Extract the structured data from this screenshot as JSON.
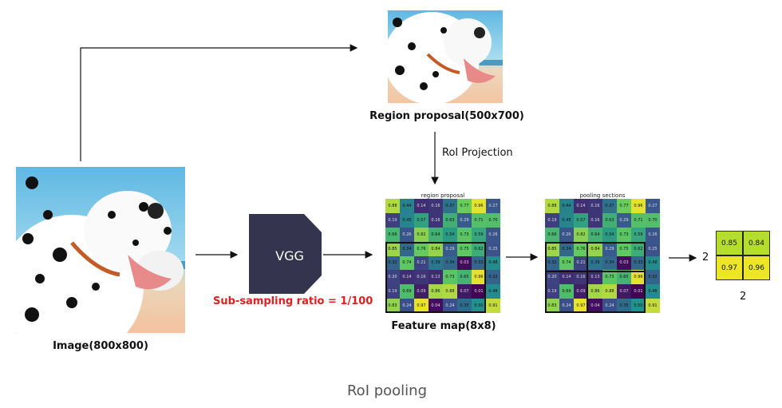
{
  "labels": {
    "image": "Image(800x800)",
    "region_proposal": "Region proposal(500x700)",
    "roi_projection": "RoI Projection",
    "vgg": "VGG",
    "subsampling": "Sub-sampling ratio = 1/100",
    "feature_map": "Feature map(8x8)",
    "heatmap1_title": "region proposal",
    "heatmap2_title": "pooling sections",
    "output_size_right": "2",
    "output_size_bottom": "2",
    "caption": "RoI pooling"
  },
  "feature_map": [
    [
      "0.88",
      "0.44",
      "0.14",
      "0.16",
      "0.37",
      "0.77",
      "0.96",
      "0.27"
    ],
    [
      "0.19",
      "0.45",
      "0.57",
      "0.16",
      "0.63",
      "0.29",
      "0.71",
      "0.70"
    ],
    [
      "0.66",
      "0.26",
      "0.82",
      "0.64",
      "0.54",
      "0.73",
      "0.59",
      "0.26"
    ],
    [
      "0.85",
      "0.34",
      "0.76",
      "0.84",
      "0.29",
      "0.75",
      "0.62",
      "0.25"
    ],
    [
      "0.32",
      "0.74",
      "0.21",
      "0.39",
      "0.34",
      "0.03",
      "0.33",
      "0.48"
    ],
    [
      "0.20",
      "0.14",
      "0.16",
      "0.13",
      "0.73",
      "0.65",
      "0.96",
      "0.32"
    ],
    [
      "0.19",
      "0.69",
      "0.09",
      "0.86",
      "0.88",
      "0.07",
      "0.01",
      "0.48"
    ],
    [
      "0.83",
      "0.24",
      "0.97",
      "0.04",
      "0.24",
      "0.35",
      "0.50",
      "0.91"
    ]
  ],
  "pooled": [
    [
      "0.85",
      "0.84"
    ],
    [
      "0.97",
      "0.96"
    ]
  ],
  "colors": {
    "vgg_box": "#34344f",
    "subsampling_text": "#e02020",
    "caption_text": "#555555"
  },
  "icons": {
    "image": "dalmatian-photo",
    "region": "dalmatian-crop-photo"
  }
}
